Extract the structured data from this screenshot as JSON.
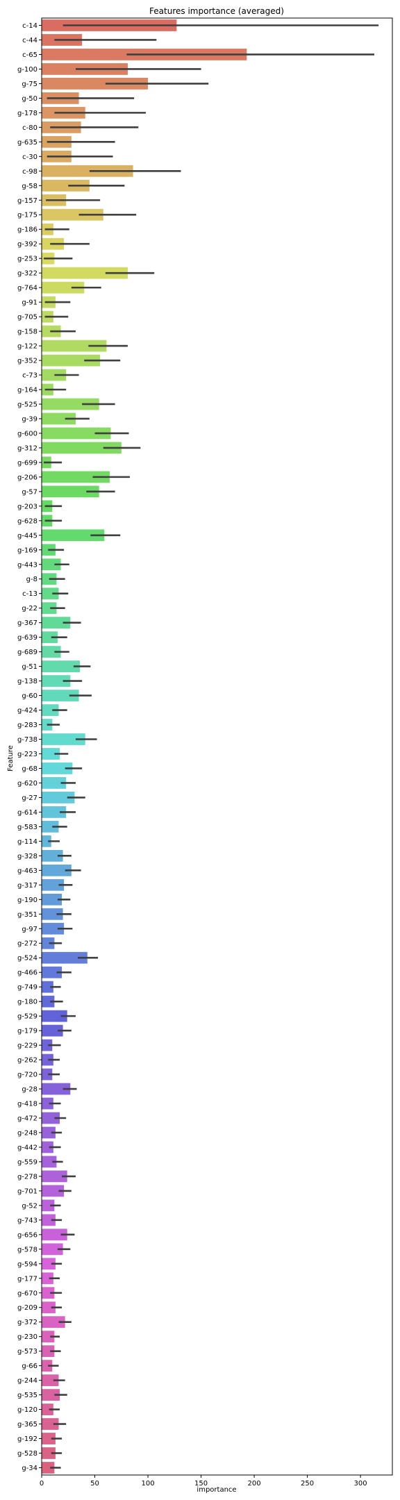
{
  "chart_data": {
    "type": "bar",
    "orientation": "horizontal",
    "title": "Features importance (averaged)",
    "xlabel": "importance",
    "ylabel": "Feature",
    "xlim": [
      0,
      330
    ],
    "xticks": [
      0,
      50,
      100,
      150,
      200,
      250,
      300
    ],
    "grid": false,
    "legend": "none",
    "palette": "husl",
    "categories": [
      "c-14",
      "c-44",
      "c-65",
      "g-100",
      "g-75",
      "g-50",
      "g-178",
      "c-80",
      "g-635",
      "c-30",
      "c-98",
      "g-58",
      "g-157",
      "g-175",
      "g-186",
      "g-392",
      "g-253",
      "g-322",
      "g-764",
      "g-91",
      "g-705",
      "g-158",
      "g-122",
      "g-352",
      "c-73",
      "g-164",
      "g-525",
      "g-39",
      "g-600",
      "g-312",
      "g-699",
      "g-206",
      "g-57",
      "g-203",
      "g-628",
      "g-445",
      "g-169",
      "g-443",
      "g-8",
      "c-13",
      "g-22",
      "g-367",
      "g-639",
      "g-689",
      "g-51",
      "g-138",
      "g-60",
      "g-424",
      "g-283",
      "g-738",
      "g-223",
      "g-68",
      "g-620",
      "g-27",
      "g-614",
      "g-583",
      "g-114",
      "g-328",
      "g-463",
      "g-317",
      "g-190",
      "g-351",
      "g-97",
      "g-272",
      "g-524",
      "g-466",
      "g-749",
      "g-180",
      "g-529",
      "g-179",
      "g-229",
      "g-262",
      "g-720",
      "g-28",
      "g-418",
      "g-472",
      "g-248",
      "g-442",
      "g-559",
      "g-278",
      "g-701",
      "g-52",
      "g-743",
      "g-656",
      "g-578",
      "g-594",
      "g-177",
      "g-670",
      "g-209",
      "g-372",
      "g-230",
      "g-573",
      "g-66",
      "g-244",
      "g-535",
      "g-120",
      "g-365",
      "g-192",
      "g-528",
      "g-34"
    ],
    "values": [
      127,
      38,
      193,
      81,
      100,
      35,
      41,
      37,
      28,
      28,
      86,
      45,
      23,
      58,
      11,
      21,
      12,
      81,
      40,
      13,
      11,
      18,
      61,
      55,
      23,
      11,
      54,
      32,
      65,
      75,
      9,
      64,
      54,
      10,
      10,
      59,
      13,
      18,
      14,
      16,
      14,
      27,
      15,
      18,
      36,
      27,
      35,
      16,
      10,
      41,
      17,
      29,
      23,
      31,
      23,
      16,
      9,
      20,
      28,
      21,
      19,
      20,
      21,
      12,
      43,
      19,
      11,
      12,
      24,
      20,
      10,
      11,
      10,
      27,
      11,
      17,
      13,
      11,
      14,
      24,
      21,
      12,
      13,
      24,
      20,
      13,
      11,
      12,
      13,
      22,
      12,
      12,
      10,
      16,
      17,
      11,
      16,
      13,
      13,
      12
    ],
    "ci_low": [
      20,
      12,
      80,
      32,
      60,
      5,
      12,
      8,
      5,
      5,
      45,
      25,
      4,
      35,
      3,
      8,
      2,
      60,
      28,
      3,
      3,
      8,
      44,
      40,
      12,
      3,
      38,
      22,
      50,
      58,
      2,
      48,
      42,
      3,
      3,
      46,
      6,
      12,
      7,
      10,
      8,
      20,
      9,
      12,
      30,
      20,
      26,
      10,
      5,
      32,
      12,
      22,
      18,
      24,
      17,
      10,
      6,
      15,
      22,
      16,
      15,
      14,
      15,
      7,
      34,
      14,
      8,
      8,
      18,
      15,
      6,
      6,
      6,
      20,
      7,
      12,
      9,
      7,
      10,
      19,
      16,
      8,
      9,
      18,
      15,
      9,
      7,
      8,
      9,
      16,
      8,
      8,
      6,
      11,
      12,
      7,
      11,
      9,
      9,
      8
    ],
    "ci_high": [
      317,
      108,
      313,
      150,
      157,
      87,
      98,
      91,
      69,
      67,
      131,
      78,
      55,
      89,
      26,
      45,
      29,
      106,
      56,
      27,
      25,
      32,
      81,
      74,
      35,
      23,
      69,
      45,
      82,
      93,
      19,
      83,
      69,
      19,
      19,
      74,
      21,
      26,
      22,
      25,
      22,
      37,
      24,
      26,
      46,
      38,
      47,
      24,
      17,
      52,
      25,
      38,
      32,
      41,
      32,
      24,
      17,
      28,
      37,
      29,
      27,
      28,
      29,
      19,
      53,
      28,
      18,
      20,
      32,
      28,
      18,
      17,
      17,
      33,
      18,
      23,
      19,
      18,
      20,
      32,
      28,
      18,
      19,
      31,
      27,
      19,
      17,
      19,
      19,
      28,
      17,
      18,
      16,
      22,
      24,
      17,
      23,
      19,
      19,
      18
    ]
  }
}
